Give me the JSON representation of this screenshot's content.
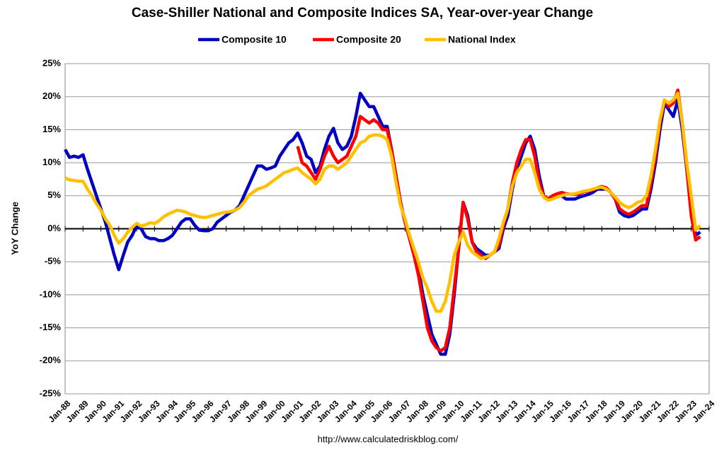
{
  "chart_data": {
    "type": "line",
    "title": "Case-Shiller National and Composite Indices SA, Year-over-year Change",
    "y_label": "YoY Change",
    "source": "http://www.calculatedriskblog.com/",
    "grid": true,
    "legend_position": "top",
    "xlim": [
      1988,
      2024
    ],
    "ylim": [
      -25,
      25
    ],
    "xticks": [
      {
        "value": 1988,
        "label": "Jan-88"
      },
      {
        "value": 1989,
        "label": "Jan-89"
      },
      {
        "value": 1990,
        "label": "Jan-90"
      },
      {
        "value": 1991,
        "label": "Jan-91"
      },
      {
        "value": 1992,
        "label": "Jan-92"
      },
      {
        "value": 1993,
        "label": "Jan-93"
      },
      {
        "value": 1994,
        "label": "Jan-94"
      },
      {
        "value": 1995,
        "label": "Jan-95"
      },
      {
        "value": 1996,
        "label": "Jan-96"
      },
      {
        "value": 1997,
        "label": "Jan-97"
      },
      {
        "value": 1998,
        "label": "Jan-98"
      },
      {
        "value": 1999,
        "label": "Jan-99"
      },
      {
        "value": 2000,
        "label": "Jan-00"
      },
      {
        "value": 2001,
        "label": "Jan-01"
      },
      {
        "value": 2002,
        "label": "Jan-02"
      },
      {
        "value": 2003,
        "label": "Jan-03"
      },
      {
        "value": 2004,
        "label": "Jan-04"
      },
      {
        "value": 2005,
        "label": "Jan-05"
      },
      {
        "value": 2006,
        "label": "Jan-06"
      },
      {
        "value": 2007,
        "label": "Jan-07"
      },
      {
        "value": 2008,
        "label": "Jan-08"
      },
      {
        "value": 2009,
        "label": "Jan-09"
      },
      {
        "value": 2010,
        "label": "Jan-10"
      },
      {
        "value": 2011,
        "label": "Jan-11"
      },
      {
        "value": 2012,
        "label": "Jan-12"
      },
      {
        "value": 2013,
        "label": "Jan-13"
      },
      {
        "value": 2014,
        "label": "Jan-14"
      },
      {
        "value": 2015,
        "label": "Jan-15"
      },
      {
        "value": 2016,
        "label": "Jan-16"
      },
      {
        "value": 2017,
        "label": "Jan-17"
      },
      {
        "value": 2018,
        "label": "Jan-18"
      },
      {
        "value": 2019,
        "label": "Jan-19"
      },
      {
        "value": 2020,
        "label": "Jan-20"
      },
      {
        "value": 2021,
        "label": "Jan-21"
      },
      {
        "value": 2022,
        "label": "Jan-22"
      },
      {
        "value": 2023,
        "label": "Jan-23"
      },
      {
        "value": 2024,
        "label": "Jan-24"
      }
    ],
    "yticks": [
      {
        "value": -25,
        "label": "-25%"
      },
      {
        "value": -20,
        "label": "-20%"
      },
      {
        "value": -15,
        "label": "-15%"
      },
      {
        "value": -10,
        "label": "-10%"
      },
      {
        "value": -5,
        "label": "-5%"
      },
      {
        "value": 0,
        "label": "0%"
      },
      {
        "value": 5,
        "label": "5%"
      },
      {
        "value": 10,
        "label": "10%"
      },
      {
        "value": 15,
        "label": "15%"
      },
      {
        "value": 20,
        "label": "20%"
      },
      {
        "value": 25,
        "label": "25%"
      }
    ],
    "x": [
      1988,
      1988.25,
      1988.5,
      1988.75,
      1989,
      1989.25,
      1989.5,
      1989.75,
      1990,
      1990.25,
      1990.5,
      1990.75,
      1991,
      1991.25,
      1991.5,
      1991.75,
      1992,
      1992.25,
      1992.5,
      1992.75,
      1993,
      1993.25,
      1993.5,
      1993.75,
      1994,
      1994.25,
      1994.5,
      1994.75,
      1995,
      1995.25,
      1995.5,
      1995.75,
      1996,
      1996.25,
      1996.5,
      1996.75,
      1997,
      1997.25,
      1997.5,
      1997.75,
      1998,
      1998.25,
      1998.5,
      1998.75,
      1999,
      1999.25,
      1999.5,
      1999.75,
      2000,
      2000.25,
      2000.5,
      2000.75,
      2001,
      2001.25,
      2001.5,
      2001.75,
      2002,
      2002.25,
      2002.5,
      2002.75,
      2003,
      2003.25,
      2003.5,
      2003.75,
      2004,
      2004.25,
      2004.5,
      2004.75,
      2005,
      2005.25,
      2005.5,
      2005.75,
      2006,
      2006.25,
      2006.5,
      2006.75,
      2007,
      2007.25,
      2007.5,
      2007.75,
      2008,
      2008.25,
      2008.5,
      2008.75,
      2009,
      2009.25,
      2009.5,
      2009.75,
      2010,
      2010.25,
      2010.5,
      2010.75,
      2011,
      2011.25,
      2011.5,
      2011.75,
      2012,
      2012.25,
      2012.5,
      2012.75,
      2013,
      2013.25,
      2013.5,
      2013.75,
      2014,
      2014.25,
      2014.5,
      2014.75,
      2015,
      2015.25,
      2015.5,
      2015.75,
      2016,
      2016.25,
      2016.5,
      2016.75,
      2017,
      2017.25,
      2017.5,
      2017.75,
      2018,
      2018.25,
      2018.5,
      2018.75,
      2019,
      2019.25,
      2019.5,
      2019.75,
      2020,
      2020.25,
      2020.5,
      2020.75,
      2021,
      2021.25,
      2021.5,
      2021.75,
      2022,
      2022.25,
      2022.5,
      2022.75,
      2023,
      2023.25,
      2023.5
    ],
    "series": [
      {
        "name": "Composite 10",
        "color": "#0000c0",
        "values": [
          12,
          10.8,
          11,
          10.8,
          11.2,
          9,
          7,
          5,
          3,
          1,
          -1.5,
          -4,
          -6.2,
          -4,
          -2,
          -1,
          0.5,
          0,
          -1.2,
          -1.5,
          -1.5,
          -1.8,
          -1.8,
          -1.5,
          -1,
          0,
          1,
          1.5,
          1.5,
          0.5,
          -0.2,
          -0.3,
          -0.3,
          0,
          1,
          1.5,
          2,
          2.5,
          2.8,
          3.5,
          5,
          6.5,
          8,
          9.5,
          9.5,
          9,
          9.2,
          9.5,
          11,
          12,
          13,
          13.5,
          14.5,
          13,
          11,
          10.5,
          8.5,
          9.5,
          12,
          14,
          15.2,
          13,
          12,
          12.5,
          14,
          17,
          20.5,
          19.5,
          18.5,
          18.5,
          17,
          15.5,
          15.5,
          12,
          8,
          4,
          1,
          -1,
          -3.5,
          -6,
          -10,
          -13,
          -16,
          -17.5,
          -19,
          -19,
          -16,
          -10,
          -3,
          4,
          2,
          -2,
          -3,
          -3.5,
          -4,
          -4,
          -3.5,
          -3,
          0,
          2,
          6,
          9,
          11,
          13,
          14,
          12,
          8,
          5,
          4.5,
          4.5,
          5,
          5,
          4.5,
          4.5,
          4.5,
          4.8,
          5,
          5.2,
          5.5,
          6,
          6,
          6,
          5.5,
          4.5,
          2.5,
          2,
          1.8,
          2,
          2.5,
          3,
          3,
          6,
          10,
          15,
          19,
          18,
          17,
          19.5,
          15,
          9,
          4,
          -1,
          -0.5
        ]
      },
      {
        "name": "Composite 20",
        "color": "#ff0000",
        "values": [
          null,
          null,
          null,
          null,
          null,
          null,
          null,
          null,
          null,
          null,
          null,
          null,
          null,
          null,
          null,
          null,
          null,
          null,
          null,
          null,
          null,
          null,
          null,
          null,
          null,
          null,
          null,
          null,
          null,
          null,
          null,
          null,
          null,
          null,
          null,
          null,
          null,
          null,
          null,
          null,
          null,
          null,
          null,
          null,
          null,
          null,
          null,
          null,
          null,
          null,
          null,
          null,
          12.5,
          10,
          9.5,
          8.5,
          7.5,
          9,
          11,
          12.5,
          11,
          10,
          10.5,
          11,
          12.5,
          14,
          17,
          16.5,
          16,
          16.5,
          16,
          15,
          15,
          12,
          8,
          4,
          1,
          -1.5,
          -4,
          -7,
          -11,
          -15,
          -17,
          -18,
          -18.5,
          -18,
          -15,
          -9,
          -3,
          4,
          1.5,
          -2,
          -3.5,
          -4,
          -4.5,
          -4,
          -3.5,
          -2.5,
          0.5,
          3,
          7,
          10,
          12,
          13.5,
          13.5,
          11,
          7,
          5,
          4.5,
          5,
          5.3,
          5.5,
          5.3,
          5.2,
          5.2,
          5.3,
          5.6,
          5.7,
          5.9,
          6.2,
          6.4,
          6.2,
          5.5,
          4.5,
          3,
          2.5,
          2.2,
          2.5,
          3,
          3.5,
          3.5,
          7,
          11,
          16,
          19.5,
          18.5,
          19,
          21,
          16,
          9,
          2,
          -1.7,
          -1.2
        ]
      },
      {
        "name": "National Index",
        "color": "#ffc000",
        "values": [
          7.7,
          7.4,
          7.3,
          7.2,
          7.2,
          6,
          5,
          3.8,
          2.8,
          1.5,
          0.5,
          -1,
          -2.2,
          -1.5,
          -0.5,
          0.2,
          0.8,
          0.4,
          0.6,
          0.9,
          0.8,
          1.2,
          1.8,
          2.2,
          2.5,
          2.8,
          2.7,
          2.5,
          2.2,
          2,
          1.8,
          1.7,
          1.8,
          2,
          2.2,
          2.4,
          2.5,
          2.6,
          2.8,
          3.2,
          4,
          5,
          5.5,
          6,
          6.2,
          6.5,
          7,
          7.5,
          8,
          8.5,
          8.7,
          9,
          9.2,
          8.5,
          8,
          7.5,
          6.8,
          7.5,
          9,
          9.5,
          9.5,
          9,
          9.5,
          10,
          11,
          12,
          13,
          13.3,
          14,
          14.2,
          14.2,
          14,
          13.5,
          11,
          7,
          3.5,
          1.5,
          -1,
          -3,
          -5,
          -7.5,
          -9,
          -11,
          -12.5,
          -12.5,
          -11,
          -8,
          -4,
          -2,
          -0.5,
          -2.5,
          -3.5,
          -4,
          -4.5,
          -4.3,
          -4,
          -3.5,
          -1.5,
          1,
          3,
          6.5,
          8.5,
          9.5,
          10.5,
          10.5,
          8.5,
          6,
          4.8,
          4.3,
          4.5,
          4.8,
          5,
          5.2,
          5.2,
          5.3,
          5.5,
          5.7,
          5.8,
          6,
          6.2,
          6.3,
          6,
          5.5,
          4.8,
          4,
          3.5,
          3.2,
          3.5,
          4,
          4.2,
          5,
          8,
          12,
          16.5,
          19.5,
          19,
          19.5,
          20.5,
          16,
          10,
          5,
          -0.2,
          0.5
        ]
      }
    ]
  }
}
